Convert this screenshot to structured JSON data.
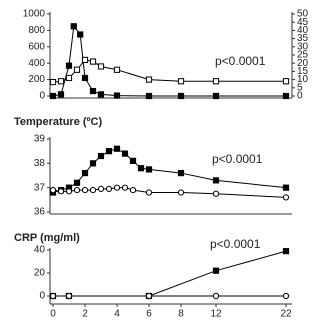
{
  "chart_data": [
    {
      "type": "line",
      "xlim": [
        0,
        22
      ],
      "ylim": [
        0,
        1000
      ],
      "yticks": [
        0,
        200,
        400,
        600,
        800,
        1000
      ],
      "y2lim": [
        0,
        50
      ],
      "y2ticks": [
        0,
        5,
        10,
        15,
        20,
        25,
        30,
        35,
        40,
        45,
        50
      ],
      "annotation": "p<0.0001",
      "series": [
        {
          "color": "#000000",
          "marker": "square",
          "marker_fill": "#000000",
          "x": [
            0,
            0.5,
            1,
            1.3,
            1.7,
            2,
            2.5,
            3,
            4,
            6,
            8,
            12,
            22
          ],
          "values": [
            0,
            20,
            370,
            850,
            750,
            220,
            60,
            20,
            5,
            0,
            0,
            0,
            0
          ]
        },
        {
          "color": "#000000",
          "marker": "square",
          "marker_fill": "#ffffff",
          "axis": "y2",
          "x": [
            0,
            0.5,
            1,
            1.5,
            2,
            2.5,
            3,
            4,
            6,
            8,
            12,
            22
          ],
          "values": [
            8.5,
            9,
            11,
            16,
            22,
            21,
            18,
            16,
            10,
            9,
            9,
            9
          ]
        }
      ]
    },
    {
      "type": "line",
      "title": "Temperature (ºC)",
      "xlim": [
        0,
        22
      ],
      "ylim": [
        36,
        39
      ],
      "yticks": [
        36,
        37,
        38,
        39
      ],
      "annotation": "p<0.0001",
      "series": [
        {
          "color": "#000000",
          "marker": "square",
          "marker_fill": "#000000",
          "x": [
            0,
            0.5,
            1,
            1.5,
            2,
            2.5,
            3,
            3.5,
            4,
            4.5,
            5,
            5.5,
            6,
            8,
            12,
            22
          ],
          "values": [
            36.8,
            36.9,
            37.0,
            37.2,
            37.6,
            38.0,
            38.3,
            38.5,
            38.6,
            38.4,
            38.1,
            37.8,
            37.75,
            37.6,
            37.3,
            37.0
          ]
        },
        {
          "color": "#000000",
          "marker": "circle",
          "marker_fill": "#ffffff",
          "x": [
            0,
            0.5,
            1,
            1.5,
            2,
            2.5,
            3,
            3.5,
            4,
            4.5,
            5,
            6,
            8,
            12,
            22
          ],
          "values": [
            36.9,
            36.85,
            36.85,
            36.9,
            36.9,
            36.9,
            36.95,
            36.95,
            37.0,
            37.0,
            36.9,
            36.8,
            36.8,
            36.75,
            36.6
          ]
        }
      ]
    },
    {
      "type": "line",
      "title": "CRP (mg/ml)",
      "xlim": [
        0,
        22
      ],
      "ylim": [
        0,
        40
      ],
      "yticks": [
        0,
        20,
        40
      ],
      "xticks": [
        0,
        2,
        4,
        6,
        8,
        12,
        22
      ],
      "annotation": "p<0.0001",
      "series": [
        {
          "color": "#000000",
          "marker": "square",
          "marker_fill": "#000000",
          "x": [
            0,
            1,
            6,
            12,
            22
          ],
          "values": [
            0,
            0,
            0,
            22,
            39
          ]
        },
        {
          "color": "#000000",
          "marker": "circle",
          "marker_fill": "#ffffff",
          "x": [
            0,
            1,
            6,
            12,
            22
          ],
          "values": [
            0,
            0,
            0,
            0,
            0
          ]
        }
      ]
    }
  ]
}
